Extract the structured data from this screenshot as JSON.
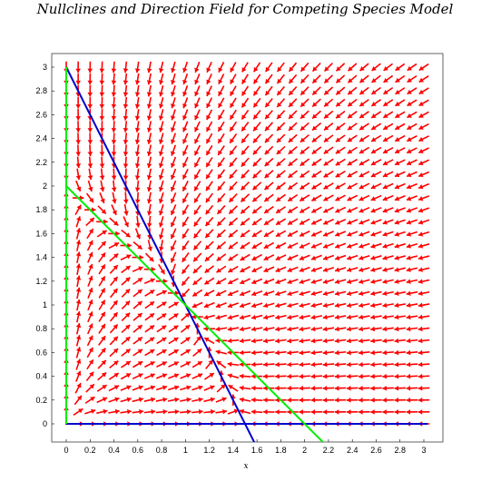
{
  "chart_data": {
    "type": "vector-field",
    "title": "Nullclines and Direction Field for Competing Species Model",
    "xlabel": "x",
    "ylabel": "",
    "xlim": [
      0,
      3
    ],
    "ylim": [
      0,
      3
    ],
    "grid": false,
    "legend": "none",
    "x_ticks": [
      "0",
      "0.2",
      "0.4",
      "0.6",
      "0.8",
      "1",
      "1.2",
      "1.4",
      "1.6",
      "1.8",
      "2",
      "2.2",
      "2.4",
      "2.6",
      "2.8",
      "3"
    ],
    "y_ticks": [
      "0",
      "0.2",
      "0.4",
      "0.6",
      "0.8",
      "1",
      "1.2",
      "1.4",
      "1.6",
      "1.8",
      "2",
      "2.2",
      "2.4",
      "2.6",
      "2.8",
      "3"
    ],
    "direction_field": {
      "x_range": [
        0,
        3
      ],
      "y_range": [
        0,
        3
      ],
      "samples": 31,
      "color": "#ff0000"
    },
    "nullclines": [
      {
        "kind": "x-nullcline",
        "color": "#0000cc",
        "points": [
          [
            0,
            3
          ],
          [
            1.5,
            0
          ]
        ]
      },
      {
        "kind": "x-nullcline",
        "color": "#0000cc",
        "points": [
          [
            0,
            0
          ],
          [
            3,
            0
          ]
        ]
      },
      {
        "kind": "y-nullcline",
        "color": "#00ee00",
        "points": [
          [
            0,
            2
          ],
          [
            2,
            0
          ]
        ]
      },
      {
        "kind": "y-nullcline",
        "color": "#00ee00",
        "points": [
          [
            0,
            0
          ],
          [
            0,
            3
          ]
        ]
      }
    ],
    "frame_color": "#000000"
  }
}
